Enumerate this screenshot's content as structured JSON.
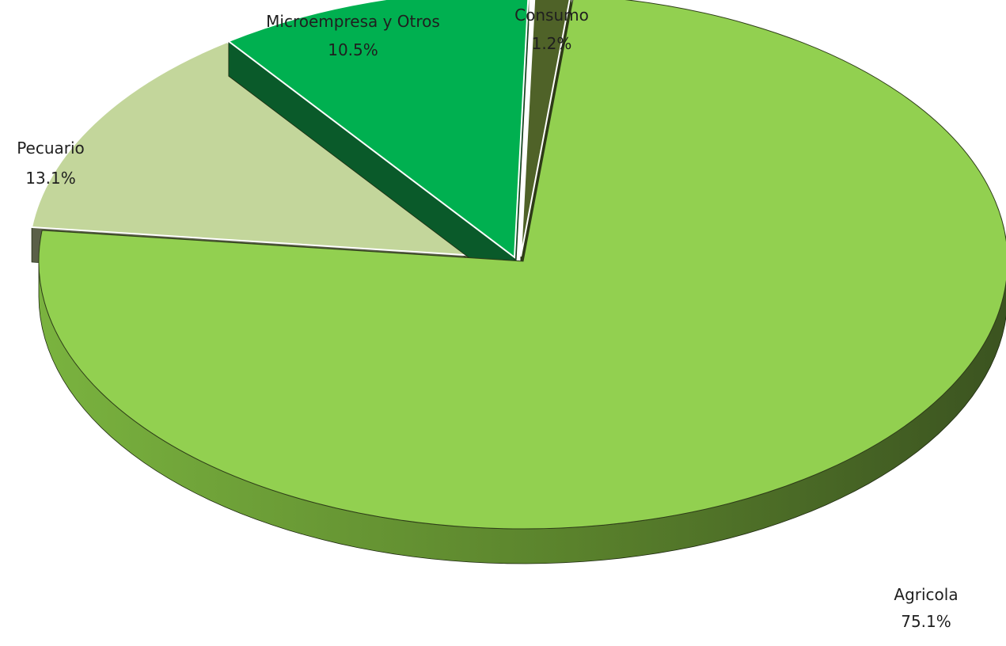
{
  "chart_data": {
    "type": "pie",
    "style": "3d-exploded",
    "slices": [
      {
        "label": "Agricola",
        "value": 75.1,
        "display": "75.1%",
        "color": "#92d050",
        "side_color": "#4f6b28",
        "label_position": "bottom-right"
      },
      {
        "label": "Pecuario",
        "value": 13.1,
        "display": "13.1%",
        "color": "#c3d69b",
        "side_color": "#5a5f48",
        "label_position": "left"
      },
      {
        "label": "Microempresa y Otros",
        "value": 10.5,
        "display": "10.5%",
        "color": "#00b050",
        "side_color": "#0a5a2a",
        "label_position": "top"
      },
      {
        "label": "Consumo",
        "value": 1.2,
        "display": "1.2%",
        "color": "#4f6228",
        "side_color": "#2e3a17",
        "label_position": "top"
      }
    ],
    "legend": "none"
  }
}
